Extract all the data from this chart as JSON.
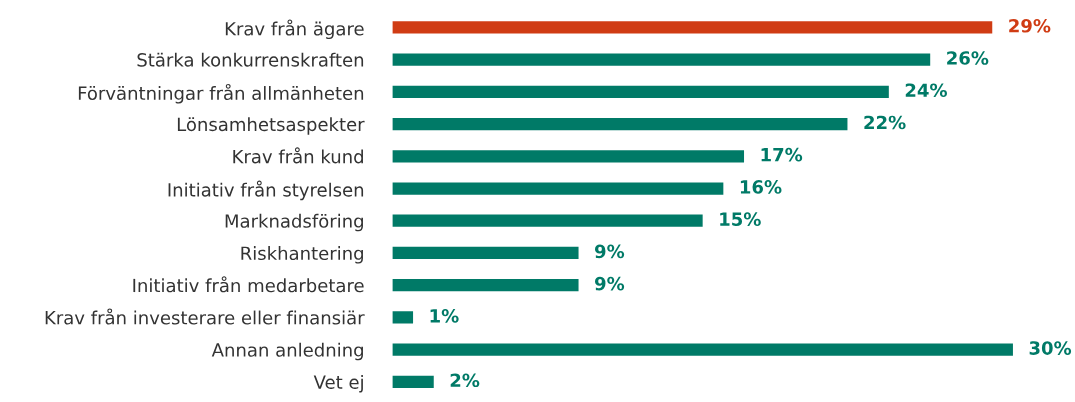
{
  "chart_data": {
    "type": "bar",
    "orientation": "horizontal",
    "categories": [
      "Krav från ägare",
      "Stärka konkurrenskraften",
      "Förväntningar från allmänheten",
      "Lönsamhetsaspekter",
      "Krav från kund",
      "Initiativ från styrelsen",
      "Marknadsföring",
      "Riskhantering",
      "Initiativ från medarbetare",
      "Krav från investerare eller finansiär",
      "Annan anledning",
      "Vet ej"
    ],
    "values": [
      29,
      26,
      24,
      22,
      17,
      16,
      15,
      9,
      9,
      1,
      30,
      2
    ],
    "value_labels": [
      "29%",
      "26%",
      "24%",
      "22%",
      "17%",
      "16%",
      "15%",
      "9%",
      "9%",
      "1%",
      "30%",
      "2%"
    ],
    "colors": [
      "#d03c14",
      "#007a67",
      "#007a67",
      "#007a67",
      "#007a67",
      "#007a67",
      "#007a67",
      "#007a67",
      "#007a67",
      "#007a67",
      "#007a67",
      "#007a67"
    ],
    "grid": false,
    "legend": false
  }
}
